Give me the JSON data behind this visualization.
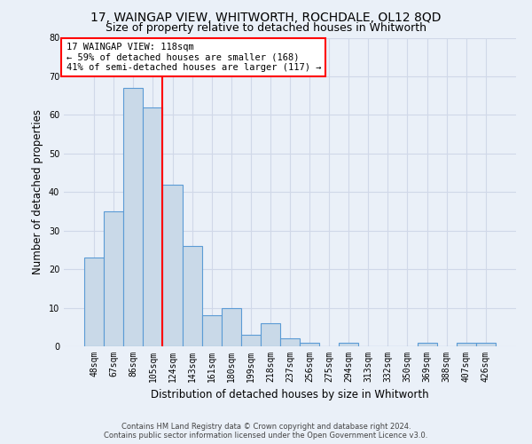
{
  "title": "17, WAINGAP VIEW, WHITWORTH, ROCHDALE, OL12 8QD",
  "subtitle": "Size of property relative to detached houses in Whitworth",
  "xlabel": "Distribution of detached houses by size in Whitworth",
  "ylabel": "Number of detached properties",
  "categories": [
    "48sqm",
    "67sqm",
    "86sqm",
    "105sqm",
    "124sqm",
    "143sqm",
    "161sqm",
    "180sqm",
    "199sqm",
    "218sqm",
    "237sqm",
    "256sqm",
    "275sqm",
    "294sqm",
    "313sqm",
    "332sqm",
    "350sqm",
    "369sqm",
    "388sqm",
    "407sqm",
    "426sqm"
  ],
  "values": [
    23,
    35,
    67,
    62,
    42,
    26,
    8,
    10,
    3,
    6,
    2,
    1,
    0,
    1,
    0,
    0,
    0,
    1,
    0,
    1,
    1
  ],
  "bar_color": "#c9d9e8",
  "bar_edge_color": "#5b9bd5",
  "grid_color": "#d0d8e8",
  "background_color": "#eaf0f8",
  "red_line_index": 3.5,
  "annotation_box_text": "17 WAINGAP VIEW: 118sqm\n← 59% of detached houses are smaller (168)\n41% of semi-detached houses are larger (117) →",
  "ylim": [
    0,
    80
  ],
  "yticks": [
    0,
    10,
    20,
    30,
    40,
    50,
    60,
    70,
    80
  ],
  "footnote": "Contains HM Land Registry data © Crown copyright and database right 2024.\nContains public sector information licensed under the Open Government Licence v3.0.",
  "title_fontsize": 10,
  "subtitle_fontsize": 9,
  "xlabel_fontsize": 8.5,
  "ylabel_fontsize": 8.5,
  "tick_fontsize": 7,
  "annot_fontsize": 7.5,
  "footnote_fontsize": 6
}
